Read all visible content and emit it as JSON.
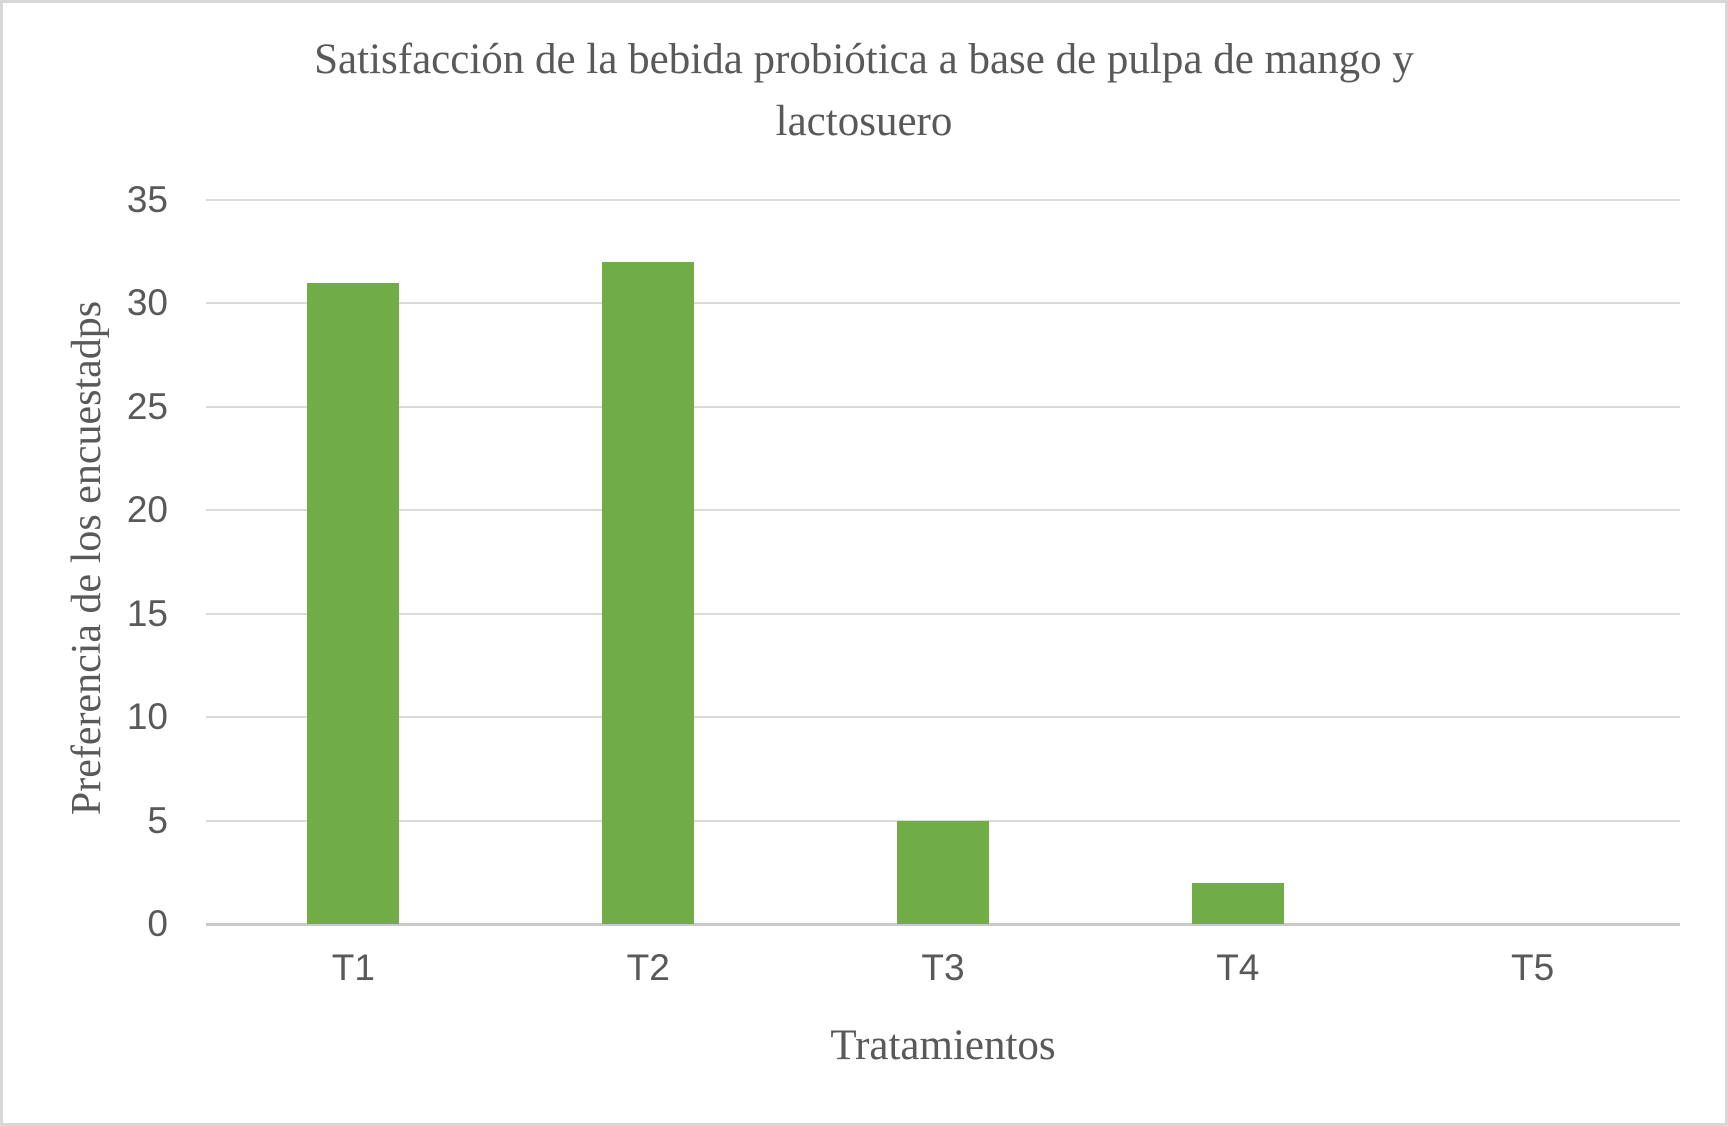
{
  "chart_data": {
    "type": "bar",
    "title": "Satisfacción de la bebida probiótica a base de pulpa de mango y lactosuero",
    "xlabel": "Tratamientos",
    "ylabel": "Preferencia de los encuestadps",
    "categories": [
      "T1",
      "T2",
      "T3",
      "T4",
      "T5"
    ],
    "values": [
      31,
      32,
      5,
      2,
      0
    ],
    "ylim": [
      0,
      35
    ],
    "ytick_step": 5,
    "yticks": [
      0,
      5,
      10,
      15,
      20,
      25,
      30,
      35
    ],
    "grid": true,
    "legend_position": "none",
    "colors": {
      "bar": "#70AD47",
      "text": "#595959",
      "gridline": "#DADADA",
      "axis_line": "#C9C9C9",
      "background": "#FFFFFF",
      "border": "#D7D7D7"
    }
  }
}
